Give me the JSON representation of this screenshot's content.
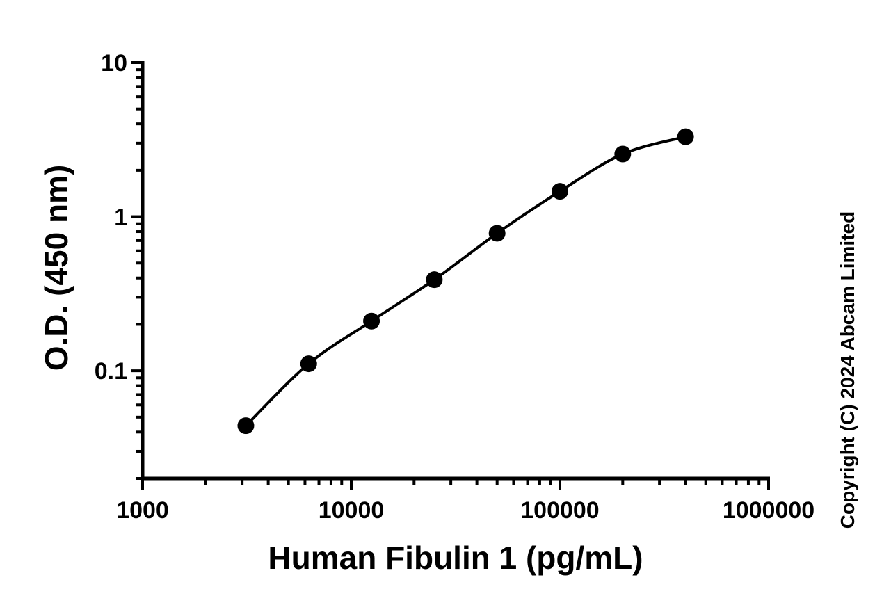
{
  "chart_data": {
    "type": "scatter",
    "x_scale": "log",
    "y_scale": "log",
    "xlabel": "Human Fibulin 1 (pg/mL)",
    "ylabel": "O.D. (450 nm)",
    "xlim": [
      1000,
      1000000
    ],
    "ylim": [
      0.02,
      10
    ],
    "x_ticks": [
      {
        "value": 1000,
        "label": "1000"
      },
      {
        "value": 10000,
        "label": "10000"
      },
      {
        "value": 100000,
        "label": "100000"
      },
      {
        "value": 1000000,
        "label": "1000000"
      }
    ],
    "y_ticks": [
      {
        "value": 0.1,
        "label": "0.1"
      },
      {
        "value": 1,
        "label": "1"
      },
      {
        "value": 10,
        "label": "10"
      }
    ],
    "grid": false,
    "series": [
      {
        "x": [
          3125,
          6250,
          12500,
          25000,
          50000,
          100000,
          200000,
          400000
        ],
        "y": [
          0.044,
          0.111,
          0.21,
          0.39,
          0.78,
          1.46,
          2.55,
          3.3
        ],
        "marker": "circle",
        "color": "#000000",
        "fit_curve": true
      }
    ],
    "annotations": [
      "Copyright (C) 2024 Abcam Limited"
    ]
  }
}
